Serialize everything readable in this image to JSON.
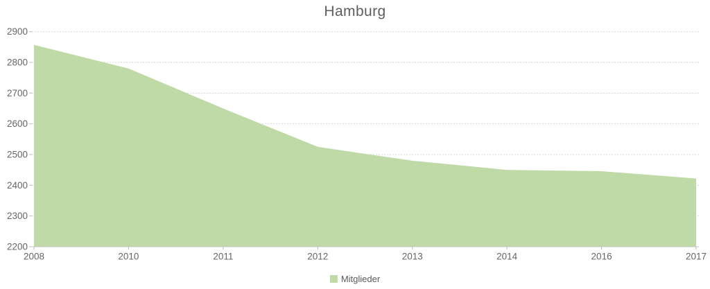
{
  "chart": {
    "title": "Hamburg"
  },
  "legend": {
    "label": "Mitglieder"
  },
  "chart_data": {
    "type": "area",
    "title": "Hamburg",
    "categories": [
      "2008",
      "2010",
      "2011",
      "2012",
      "2013",
      "2014",
      "2016",
      "2017"
    ],
    "series": [
      {
        "name": "Mitglieder",
        "values": [
          2857,
          2780,
          2650,
          2525,
          2480,
          2450,
          2446,
          2422
        ]
      }
    ],
    "xlabel": "",
    "ylabel": "",
    "ylim": [
      2200,
      2900
    ],
    "ytick_step": 100,
    "ytick_labels": [
      "2200",
      "2300",
      "2400",
      "2500",
      "2600",
      "2700",
      "2800",
      "2900"
    ],
    "grid": "horizontal-dotted",
    "legend_position": "bottom-center",
    "colors": {
      "area": "#bfd9a7",
      "gridline": "#d6d6d6",
      "axis_line": "#c4c4c4",
      "tick": "#bbbbbb",
      "axis_text": "#666666",
      "title_text": "#5e5e5e"
    }
  }
}
